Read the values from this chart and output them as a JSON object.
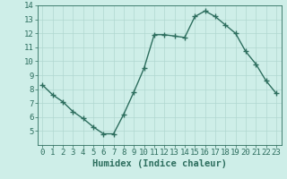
{
  "x": [
    0,
    1,
    2,
    3,
    4,
    5,
    6,
    7,
    8,
    9,
    10,
    11,
    12,
    13,
    14,
    15,
    16,
    17,
    18,
    19,
    20,
    21,
    22,
    23
  ],
  "y": [
    8.3,
    7.6,
    7.1,
    6.4,
    5.9,
    5.3,
    4.8,
    4.8,
    6.2,
    7.8,
    9.5,
    11.9,
    11.9,
    11.8,
    11.7,
    13.2,
    13.6,
    13.2,
    12.6,
    12.0,
    10.7,
    9.8,
    8.6,
    7.7
  ],
  "line_color": "#2d6e5e",
  "marker_color": "#2d6e5e",
  "bg_color": "#ceeee8",
  "grid_color": "#b0d8d0",
  "xlabel": "Humidex (Indice chaleur)",
  "ylim": [
    4,
    14
  ],
  "xlim": [
    -0.5,
    23.5
  ],
  "yticks": [
    5,
    6,
    7,
    8,
    9,
    10,
    11,
    12,
    13,
    14
  ],
  "xticks": [
    0,
    1,
    2,
    3,
    4,
    5,
    6,
    7,
    8,
    9,
    10,
    11,
    12,
    13,
    14,
    15,
    16,
    17,
    18,
    19,
    20,
    21,
    22,
    23
  ],
  "xlabel_fontsize": 7.5,
  "tick_fontsize": 6.5,
  "line_width": 1.0,
  "marker_size": 2.5
}
